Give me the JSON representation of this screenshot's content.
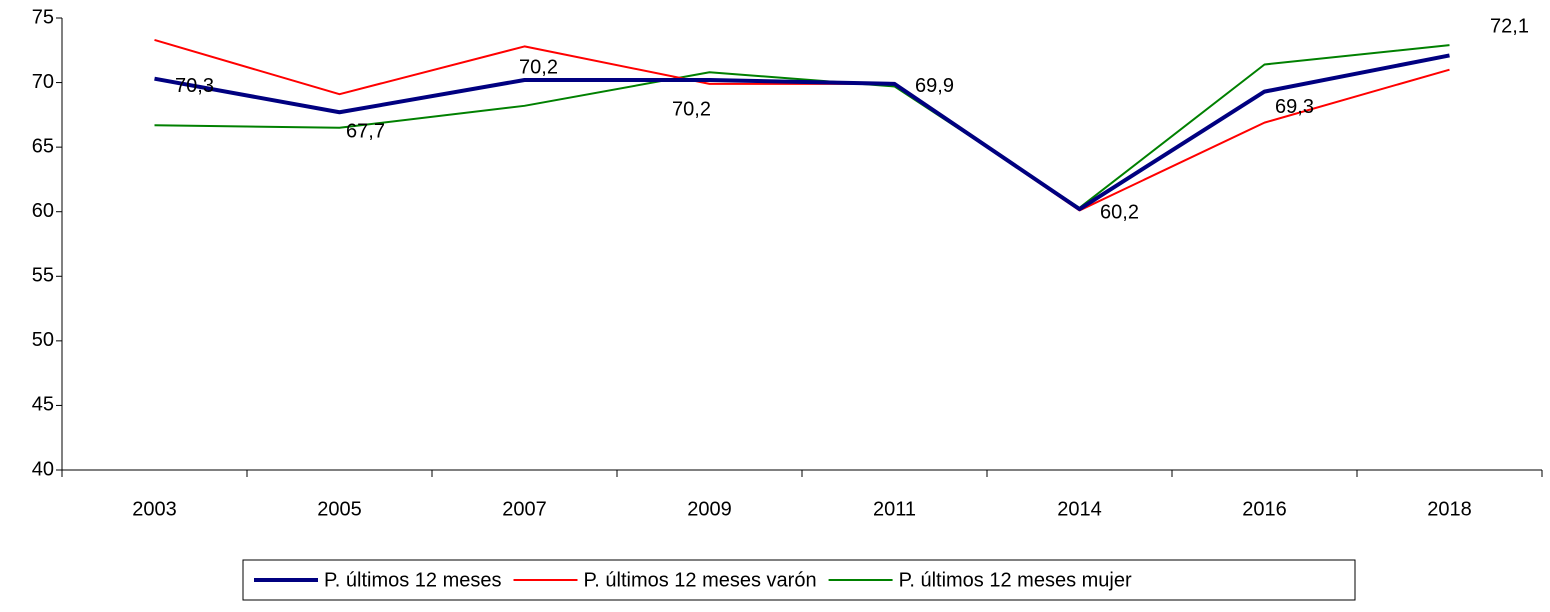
{
  "chart_data": {
    "type": "line",
    "categories": [
      "2003",
      "2005",
      "2007",
      "2009",
      "2011",
      "2014",
      "2016",
      "2018"
    ],
    "series": [
      {
        "name": "P. últimos 12 meses",
        "color": "#000080",
        "values": [
          70.3,
          67.7,
          70.2,
          70.2,
          69.9,
          60.2,
          69.3,
          72.1
        ],
        "value_labels": [
          "70,3",
          "67,7",
          "70,2",
          "70,2",
          "69,9",
          "60,2",
          "69,3",
          "72,1"
        ]
      },
      {
        "name": "P. últimos 12 meses varón",
        "color": "#ff0000",
        "values": [
          73.3,
          69.1,
          72.8,
          69.9,
          69.9,
          60.1,
          66.9,
          71.0
        ]
      },
      {
        "name": "P. últimos 12 meses mujer",
        "color": "#008000",
        "values": [
          66.7,
          66.5,
          68.2,
          70.8,
          69.7,
          60.3,
          71.4,
          72.9
        ]
      }
    ],
    "ylim": [
      40,
      75
    ],
    "yticks": [
      40,
      45,
      50,
      55,
      60,
      65,
      70,
      75
    ],
    "legend": "bottom"
  }
}
